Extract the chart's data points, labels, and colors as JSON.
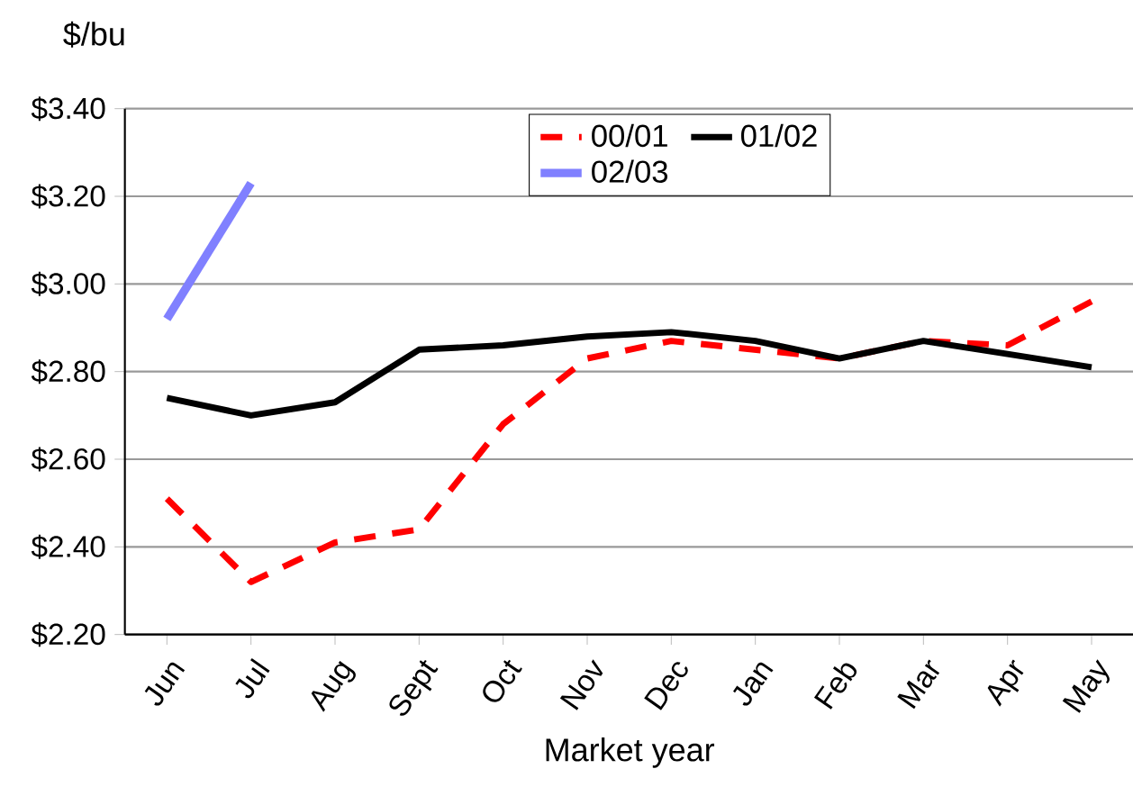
{
  "chart_data": {
    "type": "line",
    "xlabel": "Market year",
    "ylabel": "$/bu",
    "categories": [
      "Jun",
      "Jul",
      "Aug",
      "Sept",
      "Oct",
      "Nov",
      "Dec",
      "Jan",
      "Feb",
      "Mar",
      "Apr",
      "May"
    ],
    "series": [
      {
        "name": "00/01",
        "color": "#ff0000",
        "line_style": "dashed",
        "values": [
          2.51,
          2.32,
          2.41,
          2.44,
          2.68,
          2.83,
          2.87,
          2.85,
          2.83,
          2.87,
          2.86,
          2.96
        ]
      },
      {
        "name": "01/02",
        "color": "#000000",
        "line_style": "solid",
        "values": [
          2.74,
          2.7,
          2.73,
          2.85,
          2.86,
          2.88,
          2.89,
          2.87,
          2.83,
          2.87,
          2.84,
          2.81
        ]
      },
      {
        "name": "02/03",
        "color": "#8080ff",
        "line_style": "solid",
        "values": [
          2.92,
          3.23,
          null,
          null,
          null,
          null,
          null,
          null,
          null,
          null,
          null,
          null
        ]
      }
    ],
    "ylim": [
      2.2,
      3.4
    ],
    "yticks": [
      {
        "value": 2.2,
        "label": "$2.20"
      },
      {
        "value": 2.4,
        "label": "$2.40"
      },
      {
        "value": 2.6,
        "label": "$2.60"
      },
      {
        "value": 2.8,
        "label": "$2.80"
      },
      {
        "value": 3.0,
        "label": "$3.00"
      },
      {
        "value": 3.2,
        "label": "$3.20"
      },
      {
        "value": 3.4,
        "label": "$3.40"
      }
    ],
    "grid": "y",
    "legend": "top",
    "marker": "none"
  }
}
